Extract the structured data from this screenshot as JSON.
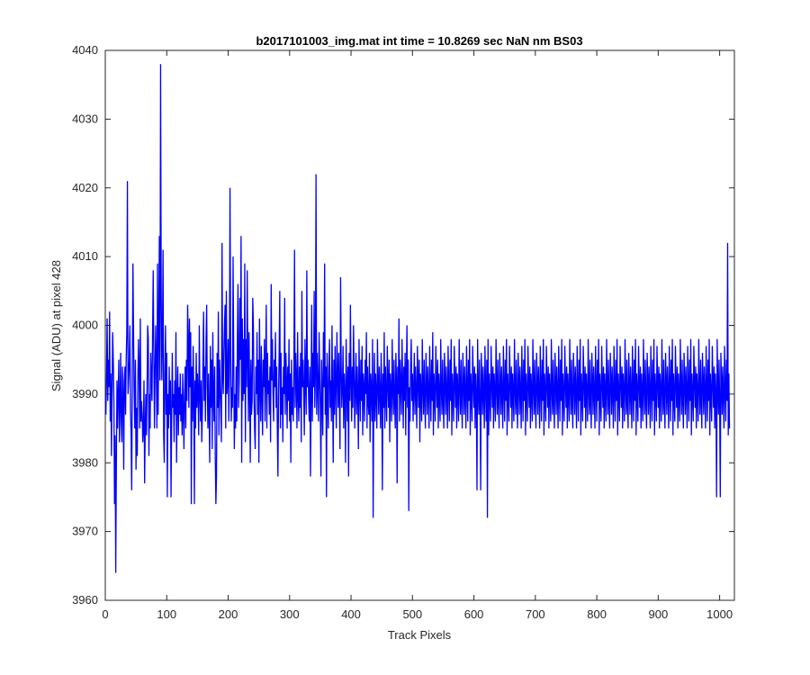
{
  "chart_data": {
    "type": "line",
    "title": "b2017101003_img.mat int time = 10.8269 sec  NaN nm BS03",
    "xlabel": "Track Pixels",
    "ylabel": "Signal (ADU) at pixel 428",
    "xlim": [
      0,
      1024
    ],
    "ylim": [
      3960,
      4040
    ],
    "xticks": [
      0,
      100,
      200,
      300,
      400,
      500,
      600,
      700,
      800,
      900,
      1000
    ],
    "yticks": [
      3960,
      3970,
      3980,
      3990,
      4000,
      4010,
      4020,
      4030,
      4040
    ],
    "grid": false,
    "legend": "none",
    "series": [
      {
        "color": "#0000ff",
        "x_start": 1,
        "x_step": 1,
        "values": [
          3987,
          3993,
          4001,
          3989,
          3995,
          3991,
          4002,
          3986,
          3993,
          3981,
          3990,
          3999,
          3995,
          3989,
          3974,
          3984,
          3964,
          3980,
          3992,
          3985,
          3990,
          3995,
          3983,
          3988,
          3996,
          3986,
          3983,
          3994,
          3990,
          3979,
          3992,
          3994,
          3987,
          3995,
          3999,
          4021,
          3990,
          3992,
          3995,
          4000,
          3988,
          3984,
          3976,
          3993,
          4009,
          3999,
          3990,
          3985,
          3995,
          3979,
          3988,
          3981,
          3992,
          3998,
          3993,
          3985,
          4001,
          3986,
          3989,
          3987,
          3983,
          3985,
          3992,
          3977,
          3985,
          3990,
          3984,
          3991,
          4000,
          3998,
          3981,
          3990,
          3985,
          3996,
          3992,
          3989,
          3999,
          4008,
          3996,
          3985,
          3993,
          4000,
          3994,
          3985,
          4009,
          3987,
          3999,
          4013,
          3992,
          4038,
          4005,
          3992,
          3998,
          4011,
          3984,
          3980,
          3993,
          4000,
          3987,
          3996,
          3975,
          3990,
          3985,
          3994,
          3987,
          3992,
          3975,
          3986,
          3996,
          3988,
          3990,
          3983,
          3992,
          3987,
          3999,
          3980,
          3989,
          3994,
          3984,
          3991,
          3987,
          3993,
          3986,
          3990,
          3984,
          3993,
          3988,
          3982,
          3990,
          3994,
          3985,
          3995,
          3989,
          4003,
          3998,
          3988,
          4001,
          3991,
          3999,
          3974,
          3994,
          3986,
          3997,
          3990,
          3974,
          3992,
          3985,
          3996,
          3988,
          3993,
          3990,
          3984,
          4000,
          3990,
          3986,
          3992,
          3983,
          3987,
          3995,
          4002,
          3989,
          3994,
          3986,
          3998,
          4003,
          3991,
          3985,
          3993,
          3987,
          3980,
          3997,
          3988,
          3995,
          3982,
          3999,
          3990,
          3986,
          3994,
          3981,
          3974,
          3978,
          3996,
          3988,
          4002,
          3984,
          3995,
          3991,
          3988,
          3983,
          4012,
          3993,
          3990,
          3996,
          4000,
          4003,
          3985,
          4005,
          3990,
          3992,
          3998,
          3986,
          3993,
          4020,
          3997,
          3986,
          3991,
          3988,
          4010,
          3996,
          3982,
          3990,
          3985,
          3994,
          3986,
          3998,
          4006,
          3988,
          3992,
          4004,
          3995,
          4013,
          3980,
          4001,
          3989,
          3998,
          3990,
          4009,
          3983,
          3998,
          3991,
          4008,
          3995,
          3986,
          3999,
          3991,
          3980,
          3995,
          3987,
          3989,
          4004,
          4000,
          3990,
          3985,
          3982,
          3994,
          3990,
          3999,
          3987,
          3995,
          3980,
          4001,
          3992,
          3986,
          3997,
          3990,
          3984,
          3995,
          3991,
          3998,
          3986,
          3993,
          4003,
          3985,
          3996,
          3990,
          3992,
          3987,
          3994,
          3983,
          4006,
          3992,
          3998,
          3990,
          3986,
          3995,
          3991,
          3999,
          3988,
          3994,
          3985,
          3978,
          3990,
          3996,
          4005,
          3985,
          3996,
          3987,
          3991,
          3983,
          3994,
          3990,
          4004,
          3987,
          3996,
          3992,
          3985,
          3994,
          3989,
          3998,
          3986,
          3993,
          3980,
          3995,
          3987,
          3991,
          3986,
          3994,
          4011,
          3988,
          3996,
          3992,
          3985,
          3999,
          3990,
          3986,
          3994,
          3988,
          3996,
          3983,
          4005,
          3991,
          3995,
          3990,
          3984,
          3998,
          3992,
          3987,
          4008,
          3991,
          3995,
          3989,
          3986,
          3994,
          3978,
          3990,
          4003,
          3986,
          3996,
          3991,
          4005,
          3988,
          3993,
          4022,
          3987,
          3996,
          3991,
          3986,
          3999,
          3993,
          3988,
          3978,
          3995,
          3990,
          3984,
          3999,
          3991,
          4009,
          3987,
          3994,
          3975,
          3996,
          3990,
          3985,
          3994,
          3998,
          3988,
          3992,
          3986,
          4000,
          3990,
          3980,
          3995,
          3987,
          3997,
          3991,
          3985,
          3999,
          3993,
          3988,
          3996,
          3990,
          3982,
          4007,
          3994,
          3988,
          3991,
          3997,
          3985,
          3993,
          3990,
          3980,
          3998,
          3991,
          3986,
          3994,
          3978,
          3996,
          3989,
          4003,
          3992,
          3986,
          3994,
          3988,
          4000,
          3993,
          3985,
          3991,
          3996,
          3987,
          3994,
          3990,
          3982,
          3998,
          3991,
          3986,
          3995,
          3989,
          3997,
          3984,
          3993,
          3991,
          3986,
          3995,
          3990,
          3999,
          3985,
          3994,
          3989,
          3987,
          3996,
          3983,
          3993,
          3991,
          3986,
          3998,
          3972,
          3990,
          3996,
          3986,
          3993,
          3990,
          3985,
          3998,
          3992,
          3987,
          3994,
          3990,
          3985,
          3996,
          3991,
          3976,
          3993,
          3988,
          3999,
          3985,
          3994,
          3990,
          3986,
          3997,
          3992,
          3988,
          3995,
          3983,
          3993,
          3990,
          3986,
          3998,
          3991,
          3987,
          3995,
          3989,
          3985,
          3996,
          3992,
          3977,
          3994,
          3990,
          4001,
          3986,
          3995,
          3991,
          3987,
          3998,
          3992,
          3985,
          3994,
          3989,
          3996,
          3984,
          3993,
          4000,
          3988,
          3995,
          3973,
          3991,
          3986,
          3994,
          3998,
          3989,
          3993,
          3986,
          3991,
          3996,
          3987,
          3994,
          3990,
          3985,
          3997,
          3992,
          3988,
          3995,
          3983,
          3993,
          3990,
          3986,
          3998,
          3991,
          3987,
          3995,
          3989,
          3985,
          3996,
          3992,
          3987,
          3994,
          3990,
          3985,
          3997,
          3991,
          3986,
          3995,
          3989,
          3999,
          3984,
          3993,
          3990,
          3986,
          3997,
          3992,
          3988,
          3995,
          3985,
          3993,
          3990,
          3986,
          3998,
          3991,
          3987,
          3995,
          3989,
          3985,
          3996,
          3992,
          3987,
          3994,
          3990,
          3985,
          3997,
          3991,
          3986,
          3995,
          3989,
          3998,
          3984,
          3993,
          3990,
          3986,
          3997,
          3992,
          3988,
          3994,
          3985,
          3993,
          3990,
          3986,
          3998,
          3991,
          3987,
          3995,
          3989,
          3985,
          3996,
          3992,
          3987,
          3994,
          3990,
          3985,
          3997,
          3991,
          3986,
          3995,
          3989,
          3998,
          3984,
          3993,
          3990,
          3986,
          3997,
          3992,
          3988,
          3994,
          3985,
          3993,
          3990,
          3976,
          3998,
          3991,
          3987,
          3995,
          3989,
          3976,
          3996,
          3992,
          3987,
          3994,
          3990,
          3985,
          3997,
          3991,
          3986,
          3995,
          3972,
          3998,
          3984,
          3993,
          3990,
          3986,
          3997,
          3992,
          3988,
          3994,
          3985,
          3993,
          3990,
          3986,
          3998,
          3991,
          3987,
          3995,
          3989,
          3985,
          3996,
          3992,
          3987,
          3994,
          3990,
          3985,
          3997,
          3991,
          3986,
          3995,
          3989,
          3998,
          3984,
          3993,
          3990,
          3986,
          3997,
          3992,
          3988,
          3994,
          3985,
          3993,
          3990,
          3986,
          3998,
          3991,
          3987,
          3995,
          3989,
          3985,
          3996,
          3992,
          3987,
          3994,
          3990,
          3985,
          3997,
          3991,
          3986,
          3995,
          3989,
          3998,
          3984,
          3993,
          3990,
          3986,
          3997,
          3992,
          3988,
          3994,
          3985,
          3993,
          3990,
          3986,
          3998,
          3991,
          3987,
          3995,
          3989,
          3985,
          3996,
          3992,
          3987,
          3994,
          3990,
          3985,
          3997,
          3991,
          3986,
          3995,
          3989,
          3998,
          3984,
          3993,
          3990,
          3986,
          3997,
          3992,
          3988,
          3994,
          3985,
          3993,
          3990,
          3986,
          3998,
          3991,
          3987,
          3995,
          3989,
          3985,
          3996,
          3992,
          3987,
          3994,
          3990,
          3985,
          3997,
          3991,
          3986,
          3995,
          3989,
          3998,
          3984,
          3993,
          3990,
          3986,
          3997,
          3992,
          3988,
          3994,
          3985,
          3993,
          3990,
          3986,
          3998,
          3991,
          3987,
          3995,
          3989,
          3985,
          3996,
          3992,
          3987,
          3994,
          3990,
          3985,
          3997,
          3991,
          3986,
          3995,
          3989,
          3998,
          3984,
          3993,
          3990,
          3986,
          3997,
          3992,
          3988,
          3994,
          3985,
          3993,
          3990,
          3986,
          3998,
          3991,
          3987,
          3995,
          3989,
          3985,
          3996,
          3992,
          3987,
          3994,
          3990,
          3985,
          3997,
          3991,
          3986,
          3995,
          3989,
          3998,
          3984,
          3993,
          3990,
          3986,
          3997,
          3992,
          3988,
          3994,
          3985,
          3993,
          3990,
          3986,
          3998,
          3991,
          3987,
          3995,
          3989,
          3985,
          3996,
          3992,
          3987,
          3994,
          3990,
          3985,
          3997,
          3991,
          3986,
          3995,
          3989,
          3998,
          3984,
          3993,
          3990,
          3986,
          3997,
          3992,
          3988,
          3994,
          3985,
          3993,
          3990,
          3986,
          3998,
          3991,
          3987,
          3995,
          3989,
          3985,
          3996,
          3992,
          3987,
          3994,
          3990,
          3985,
          3997,
          3991,
          3986,
          3995,
          3989,
          3998,
          3984,
          3993,
          3990,
          3986,
          3997,
          3992,
          3988,
          3994,
          3985,
          3993,
          3990,
          3986,
          3998,
          3991,
          3987,
          3995,
          3989,
          3985,
          3996,
          3992,
          3987,
          3994,
          3990,
          3985,
          3997,
          3991,
          3986,
          3995,
          3989,
          3998,
          3984,
          3993,
          3990,
          3986,
          3997,
          3992,
          3988,
          3994,
          3985,
          3993,
          3990,
          3986,
          3998,
          3991,
          3987,
          3995,
          3989,
          3985,
          3996,
          3992,
          3987,
          3994,
          3990,
          3985,
          3997,
          3991,
          3986,
          3995,
          3989,
          3998,
          3984,
          3993,
          3990,
          3986,
          3997,
          3992,
          3988,
          3994,
          3985,
          3993,
          3990,
          3986,
          3998,
          3991,
          3987,
          3995,
          3989,
          3985,
          3996,
          3992,
          3987,
          3994,
          3990,
          3985,
          3997,
          3991,
          3986,
          3995,
          3989,
          3998,
          3984,
          3993,
          3990,
          3986,
          3997,
          3992,
          3988,
          3994,
          3985,
          3993,
          3990,
          3986,
          3998,
          3991,
          3987,
          3995,
          3989,
          3985,
          3996,
          3992,
          3987,
          3994,
          3990,
          3985,
          3997,
          3991,
          3986,
          3995,
          3989,
          3998,
          3984,
          3993,
          3990,
          3986,
          3997,
          3992,
          3988,
          3994,
          3985,
          3993,
          3990,
          3975,
          3998,
          3991,
          3987,
          3995,
          3989,
          3975,
          3996,
          3992,
          3987,
          3994,
          3990,
          3985,
          3997,
          3991,
          3986,
          3995,
          3989,
          4012,
          3984,
          3993,
          3985
        ]
      }
    ]
  }
}
